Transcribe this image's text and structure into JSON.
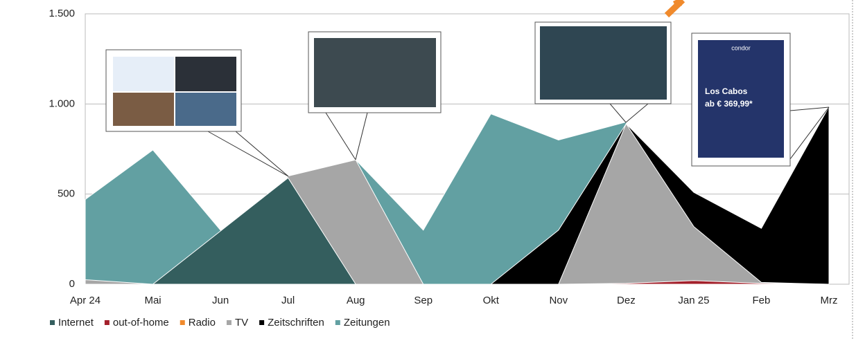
{
  "chart_data": {
    "type": "area",
    "categories": [
      "Apr 24",
      "Mai",
      "Jun",
      "Jul",
      "Aug",
      "Sep",
      "Okt",
      "Nov",
      "Dez",
      "Jan 25",
      "Feb",
      "Mrz"
    ],
    "series": [
      {
        "name": "Internet",
        "color": "#345e5e",
        "values": [
          0,
          0,
          295,
          590,
          0,
          0,
          0,
          0,
          0,
          0,
          0,
          0
        ]
      },
      {
        "name": "out-of-home",
        "color": "#a3202b",
        "values": [
          0,
          0,
          0,
          0,
          0,
          0,
          0,
          0,
          5,
          20,
          5,
          0
        ]
      },
      {
        "name": "Radio",
        "color": "#f08a2c",
        "values": [
          0,
          0,
          0,
          0,
          0,
          0,
          0,
          0,
          0,
          0,
          0,
          0
        ]
      },
      {
        "name": "TV",
        "color": "#a6a6a6",
        "values": [
          25,
          0,
          0,
          600,
          690,
          0,
          0,
          0,
          890,
          320,
          10,
          0
        ]
      },
      {
        "name": "Zeitschriften",
        "color": "#000000",
        "values": [
          0,
          0,
          0,
          0,
          0,
          0,
          0,
          300,
          890,
          510,
          310,
          985
        ]
      },
      {
        "name": "Zeitungen",
        "color": "#62a0a2",
        "values": [
          470,
          745,
          300,
          0,
          690,
          300,
          945,
          800,
          900,
          0,
          0,
          0
        ]
      }
    ],
    "ylim": [
      0,
      1500
    ],
    "yticks": [
      0,
      500,
      {
        "value": 1000,
        "label": "1.000"
      },
      {
        "value": 1500,
        "label": "1.500"
      }
    ],
    "grid": true,
    "legend": "bottom",
    "annotations": [
      "condor",
      "Los Cabos",
      "ab € 369,99*"
    ]
  }
}
